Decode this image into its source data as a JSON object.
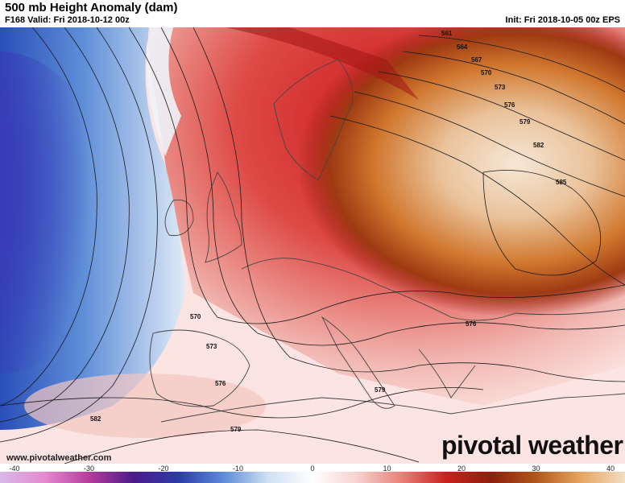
{
  "header": {
    "title": "500 mb Height Anomaly (dam)",
    "valid": "F168 Valid: Fri 2018-10-12 00z",
    "init": "Init: Fri 2018-10-05 00z EPS"
  },
  "map": {
    "contour_labels": [
      "561",
      "564",
      "567",
      "570",
      "573",
      "576",
      "579",
      "582",
      "585",
      "570",
      "573",
      "576",
      "579",
      "582",
      "579",
      "576",
      "579"
    ],
    "colors": {
      "strong_negative": "#c04ad0",
      "negative": "#2a4fb8",
      "weak_negative": "#cfe0f2",
      "neutral": "#ffffff",
      "weak_positive": "#f4c8c4",
      "positive": "#d7262a",
      "strong_positive": "#9a1a12",
      "ridge_core": "#f3e4d0",
      "ridge_mid": "#d07a2e"
    }
  },
  "footer": {
    "website": "www.pivotalweather.com",
    "brand": "pivotal weather"
  },
  "colorbar": {
    "ticks": [
      "-40",
      "-30",
      "-20",
      "-10",
      "0",
      "10",
      "20",
      "30",
      "40"
    ],
    "stops": [
      "#d9b8e8",
      "#e58ad0",
      "#b43b9c",
      "#4b1b8a",
      "#2b3ca8",
      "#5d8ad8",
      "#cfe0f2",
      "#ffffff",
      "#f6d2ce",
      "#e88078",
      "#c9201e",
      "#8c1f0e",
      "#b0561c",
      "#e6a560",
      "#f2ddc4"
    ]
  }
}
